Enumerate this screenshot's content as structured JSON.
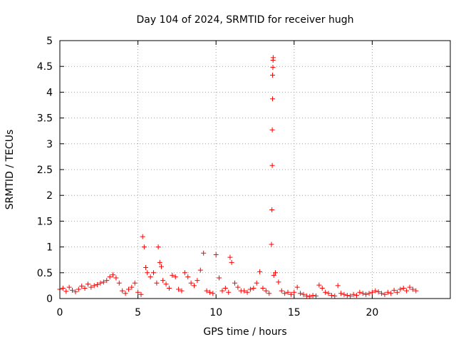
{
  "chart_data": {
    "type": "scatter",
    "title": "Day 104 of 2024, SRMTID for receiver hugh",
    "xlabel": "GPS time / hours",
    "ylabel": "SRMTID / TECUs",
    "xlim": [
      0,
      25
    ],
    "ylim": [
      0,
      5
    ],
    "x_ticks": [
      0,
      5,
      10,
      15,
      20
    ],
    "x_tick_labels": [
      "0",
      "5",
      "10",
      "15",
      "20"
    ],
    "y_ticks": [
      0,
      0.5,
      1,
      1.5,
      2,
      2.5,
      3,
      3.5,
      4,
      4.5,
      5
    ],
    "y_tick_labels": [
      "0",
      "0.5",
      "1",
      "1.5",
      "2",
      "2.5",
      "3",
      "3.5",
      "4",
      "4.5",
      "5"
    ],
    "grid": true,
    "marker": "+",
    "color": "#ff0000",
    "series": [
      {
        "name": "SRMTID",
        "x": [
          0.0,
          0.2,
          0.4,
          0.6,
          0.8,
          1.0,
          1.2,
          1.4,
          1.6,
          1.8,
          2.0,
          2.2,
          2.4,
          2.6,
          2.8,
          3.0,
          3.2,
          3.4,
          3.6,
          3.8,
          4.0,
          4.2,
          4.4,
          4.6,
          4.8,
          5.0,
          5.2,
          5.3,
          5.4,
          5.5,
          5.6,
          5.8,
          6.0,
          6.2,
          6.3,
          6.4,
          6.5,
          6.6,
          6.8,
          7.0,
          7.2,
          7.4,
          7.6,
          7.8,
          8.0,
          8.2,
          8.4,
          8.6,
          8.8,
          9.0,
          9.2,
          9.4,
          9.6,
          9.8,
          10.0,
          10.2,
          10.4,
          10.6,
          10.8,
          10.9,
          11.0,
          11.2,
          11.4,
          11.6,
          11.8,
          12.0,
          12.2,
          12.4,
          12.6,
          12.8,
          13.0,
          13.2,
          13.4,
          13.55,
          13.58,
          13.6,
          13.6,
          13.62,
          13.62,
          13.64,
          13.65,
          13.66,
          13.7,
          13.8,
          14.0,
          14.2,
          14.4,
          14.6,
          14.8,
          15.0,
          15.2,
          15.4,
          15.6,
          15.8,
          16.0,
          16.2,
          16.4,
          16.6,
          16.8,
          17.0,
          17.2,
          17.4,
          17.6,
          17.8,
          18.0,
          18.2,
          18.4,
          18.6,
          18.8,
          19.0,
          19.2,
          19.4,
          19.6,
          19.8,
          20.0,
          20.2,
          20.4,
          20.6,
          20.8,
          21.0,
          21.2,
          21.4,
          21.6,
          21.8,
          22.0,
          22.2,
          22.4,
          22.6,
          22.8
        ],
        "y": [
          0.18,
          0.2,
          0.14,
          0.22,
          0.16,
          0.13,
          0.18,
          0.24,
          0.2,
          0.28,
          0.22,
          0.25,
          0.27,
          0.3,
          0.32,
          0.35,
          0.42,
          0.46,
          0.4,
          0.3,
          0.15,
          0.1,
          0.18,
          0.22,
          0.3,
          0.12,
          0.08,
          1.2,
          1.0,
          0.6,
          0.5,
          0.42,
          0.5,
          0.3,
          1.0,
          0.7,
          0.62,
          0.35,
          0.28,
          0.2,
          0.45,
          0.42,
          0.18,
          0.15,
          0.5,
          0.42,
          0.3,
          0.25,
          0.35,
          0.55,
          0.88,
          0.15,
          0.12,
          0.1,
          0.85,
          0.4,
          0.15,
          0.2,
          0.12,
          0.8,
          0.7,
          0.3,
          0.22,
          0.15,
          0.15,
          0.12,
          0.18,
          0.2,
          0.3,
          0.52,
          0.2,
          0.15,
          0.1,
          1.05,
          1.72,
          2.58,
          3.27,
          3.87,
          4.33,
          4.48,
          4.62,
          4.67,
          0.45,
          0.5,
          0.32,
          0.15,
          0.1,
          0.12,
          0.08,
          0.12,
          0.22,
          0.1,
          0.08,
          0.05,
          0.04,
          0.06,
          0.05,
          0.26,
          0.2,
          0.12,
          0.1,
          0.06,
          0.05,
          0.25,
          0.1,
          0.08,
          0.06,
          0.05,
          0.08,
          0.06,
          0.12,
          0.1,
          0.08,
          0.1,
          0.12,
          0.15,
          0.13,
          0.1,
          0.08,
          0.12,
          0.1,
          0.16,
          0.12,
          0.18,
          0.2,
          0.15,
          0.22,
          0.18,
          0.15
        ]
      }
    ]
  }
}
